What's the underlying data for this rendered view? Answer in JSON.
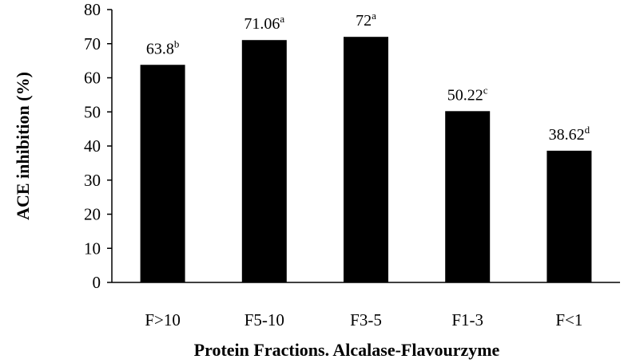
{
  "chart_data": {
    "type": "bar",
    "categories": [
      "F>10",
      "F5-10",
      "F3-5",
      "F1-3",
      "F<1"
    ],
    "values": [
      63.8,
      71.06,
      72,
      50.22,
      38.62
    ],
    "value_labels": [
      "63.8",
      "71.06",
      "72",
      "50.22",
      "38.62"
    ],
    "significance": [
      "b",
      "a",
      "a",
      "c",
      "d"
    ],
    "title": "",
    "xlabel": "Protein Fractions. Alcalase-Flavourzyme",
    "ylabel": "ACE inhibition (%)",
    "ylim": [
      0,
      80
    ],
    "yticks": [
      "0",
      "10",
      "20",
      "30",
      "40",
      "50",
      "60",
      "70",
      "80"
    ],
    "bar_color": "#000000",
    "grid": false,
    "legend": "none"
  }
}
